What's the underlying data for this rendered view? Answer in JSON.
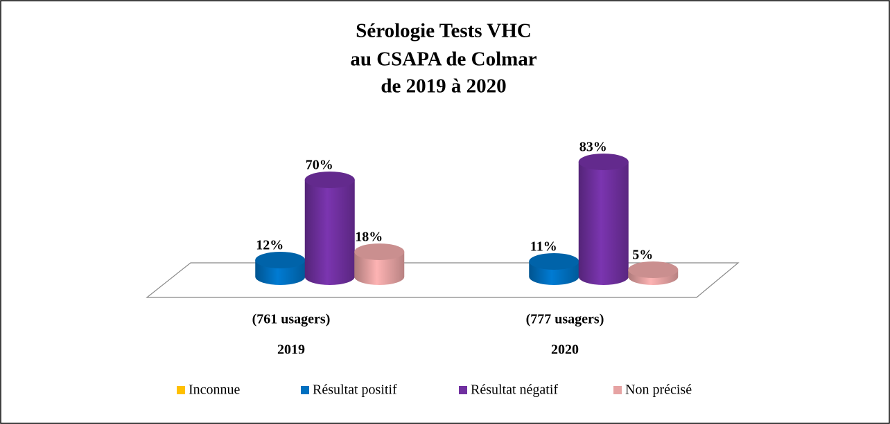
{
  "chart_data": {
    "type": "bar3d",
    "title": [
      "Sérologie Tests VHC",
      "au CSAPA de Colmar",
      "de 2019 à 2020"
    ],
    "categories": [
      "2019",
      "2020"
    ],
    "category_labels": [
      "(761 usagers)",
      "(777 usagers)"
    ],
    "series": [
      {
        "name": "Inconnue",
        "color": "#ffc000",
        "values": [
          null,
          null
        ]
      },
      {
        "name": "Résultat positif",
        "color": "#0070c0",
        "values": [
          12,
          11
        ],
        "value_labels": [
          "12%",
          "11%"
        ]
      },
      {
        "name": "Résultat négatif",
        "color": "#7030a0",
        "values": [
          70,
          83
        ],
        "value_labels": [
          "70%",
          "83%"
        ]
      },
      {
        "name": "Non précisé",
        "color": "#e6a3a3",
        "values": [
          18,
          5
        ],
        "value_labels": [
          "18%",
          "5%"
        ]
      }
    ],
    "legend": "bottom"
  }
}
